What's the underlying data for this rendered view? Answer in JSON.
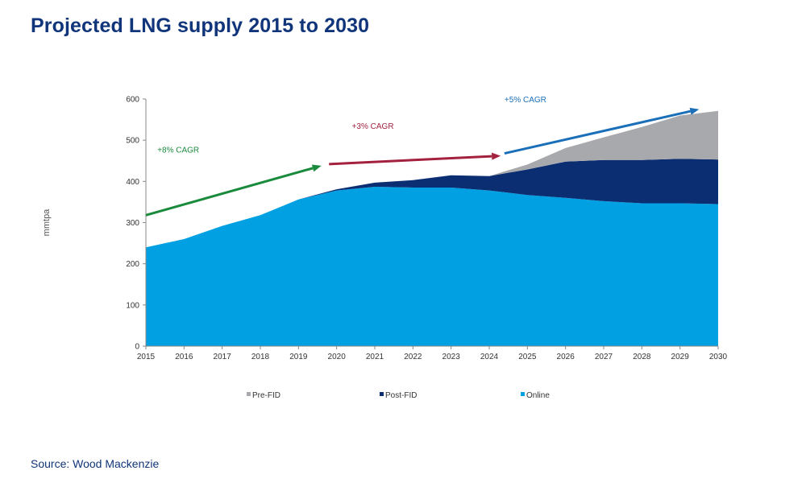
{
  "header": {
    "title": "Projected LNG supply 2015 to 2030"
  },
  "footer": {
    "source": "Source: Wood Mackenzie"
  },
  "chart_data": {
    "type": "area",
    "stacked": true,
    "title": "Projected LNG supply 2015 to 2030",
    "xlabel": "",
    "ylabel": "mmtpa",
    "ylim": [
      0,
      600
    ],
    "yticks": [
      0,
      100,
      200,
      300,
      400,
      500,
      600
    ],
    "categories": [
      "2015",
      "2016",
      "2017",
      "2018",
      "2019",
      "2020",
      "2021",
      "2022",
      "2023",
      "2024",
      "2025",
      "2026",
      "2027",
      "2028",
      "2029",
      "2030"
    ],
    "series": [
      {
        "name": "Online",
        "color": "#00a0e3",
        "values": [
          240,
          260,
          292,
          318,
          356,
          378,
          387,
          385,
          385,
          378,
          367,
          360,
          352,
          347,
          347,
          345
        ]
      },
      {
        "name": "Post-FID",
        "color": "#0b2d72",
        "values": [
          0,
          0,
          0,
          0,
          0,
          3,
          10,
          18,
          30,
          35,
          62,
          88,
          100,
          105,
          108,
          108
        ]
      },
      {
        "name": "Pre-FID",
        "color": "#a8a9ad",
        "values": [
          0,
          0,
          0,
          0,
          0,
          0,
          0,
          0,
          0,
          0,
          12,
          33,
          55,
          80,
          105,
          118
        ]
      }
    ],
    "legend": {
      "position": "bottom",
      "order": [
        "Pre-FID",
        "Post-FID",
        "Online"
      ]
    },
    "grid": false,
    "annotations": [
      {
        "text": "+8% CAGR",
        "color": "#1a8a3c",
        "arrow_from": [
          2015,
          318
        ],
        "arrow_to": [
          2019.6,
          438
        ],
        "label_at": [
          2015.3,
          470
        ]
      },
      {
        "text": "+3% CAGR",
        "color": "#a3213f",
        "arrow_from": [
          2019.8,
          442
        ],
        "arrow_to": [
          2024.3,
          462
        ],
        "label_at": [
          2020.4,
          528
        ]
      },
      {
        "text": "+5% CAGR",
        "color": "#1a6fb8",
        "arrow_from": [
          2024.4,
          468
        ],
        "arrow_to": [
          2029.5,
          575
        ],
        "label_at": [
          2024.4,
          592
        ]
      }
    ]
  }
}
